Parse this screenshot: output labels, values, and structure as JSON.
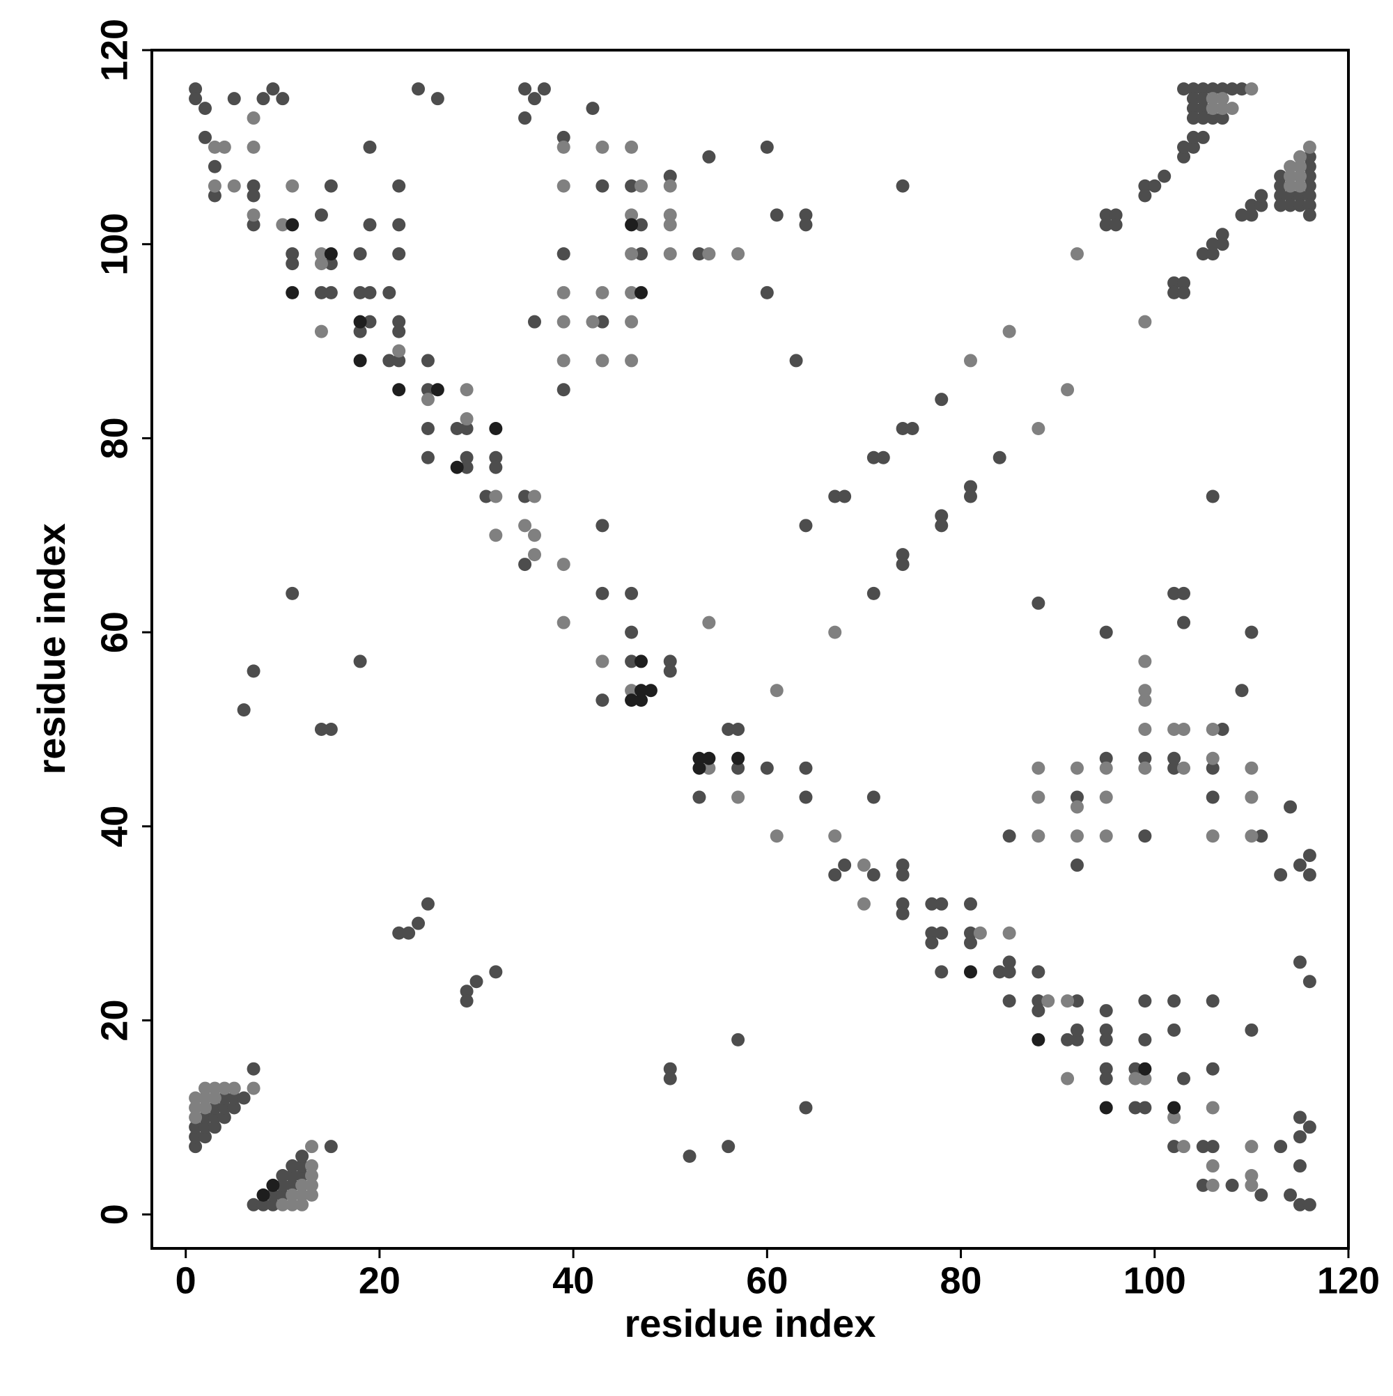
{
  "chart_data": {
    "type": "scatter",
    "x_label": "residue index",
    "y_label": "residue index",
    "xlim": [
      -3.5,
      120
    ],
    "ylim": [
      -3.5,
      120
    ],
    "xticks": [
      0,
      20,
      40,
      60,
      80,
      100,
      120
    ],
    "yticks": [
      0,
      20,
      40,
      60,
      80,
      100,
      120
    ],
    "grid": false,
    "series": [
      {
        "color": "#4d4d4d",
        "x": [
          1,
          1,
          2,
          2,
          3,
          3,
          5,
          8,
          9,
          10,
          7,
          7,
          7,
          11,
          11,
          14,
          15,
          15,
          14,
          15,
          18,
          19,
          19,
          18,
          19,
          21,
          19,
          18,
          21,
          22,
          22,
          22,
          22,
          22,
          22,
          24,
          26,
          25,
          25,
          25,
          25,
          28,
          29,
          29,
          29,
          32,
          32,
          31,
          35,
          35,
          35,
          36,
          37,
          35,
          36,
          39,
          39,
          39,
          42,
          43,
          43,
          43,
          43,
          43,
          46,
          47,
          47,
          46,
          46,
          46,
          50,
          50,
          50,
          53,
          54,
          56,
          57,
          57,
          53,
          60,
          61,
          60,
          64,
          64,
          63,
          60,
          64,
          64,
          64,
          67,
          68,
          74,
          67,
          68,
          71,
          71,
          71,
          71,
          72,
          74,
          75,
          74,
          74,
          74,
          74,
          74,
          74,
          77,
          78,
          77,
          78,
          77,
          78,
          78,
          78,
          78,
          81,
          81,
          81,
          81,
          81,
          84,
          84,
          85,
          85,
          85,
          85,
          88,
          88,
          88,
          88,
          91,
          92,
          92,
          92,
          92,
          92,
          95,
          96,
          95,
          96,
          95,
          95,
          95,
          95,
          95,
          95,
          95,
          98,
          98,
          99,
          99,
          99,
          99,
          99,
          100,
          101,
          99,
          99,
          102,
          103,
          102,
          103,
          102,
          103,
          103,
          102,
          102,
          102,
          102,
          103,
          102,
          103,
          103,
          104,
          104,
          105,
          105,
          106,
          106,
          107,
          107,
          106,
          107,
          106,
          106,
          106,
          106,
          105,
          106,
          105,
          108,
          110,
          111,
          109,
          110,
          111,
          109,
          110,
          110,
          111,
          111,
          113,
          113,
          114,
          114,
          115,
          116,
          116,
          115,
          116,
          115,
          116,
          115,
          115,
          115,
          116,
          52,
          56,
          57,
          64,
          50,
          50,
          29,
          29,
          30,
          32,
          24,
          22,
          23,
          25,
          18,
          14,
          15,
          11,
          6,
          7,
          103,
          104,
          105,
          106,
          107,
          108,
          109,
          104,
          105,
          104,
          105,
          104,
          105,
          106,
          107,
          113,
          113,
          113,
          113,
          114,
          114,
          115,
          115,
          116,
          116,
          116,
          116,
          116,
          116,
          116,
          1,
          1,
          1,
          2,
          2,
          2,
          3,
          3,
          3,
          4,
          4,
          4,
          5,
          5,
          6,
          7,
          7,
          8,
          9,
          9,
          10,
          10,
          10,
          11,
          11,
          11,
          12,
          12,
          12,
          15
        ],
        "values": [
          116,
          115,
          114,
          111,
          108,
          105,
          115,
          115,
          116,
          115,
          106,
          105,
          102,
          99,
          98,
          103,
          98,
          106,
          95,
          95,
          99,
          102,
          110,
          95,
          95,
          95,
          92,
          91,
          88,
          88,
          106,
          102,
          99,
          92,
          91,
          116,
          115,
          88,
          85,
          81,
          78,
          81,
          81,
          78,
          77,
          78,
          77,
          74,
          74,
          67,
          116,
          115,
          116,
          113,
          92,
          111,
          99,
          85,
          114,
          92,
          106,
          71,
          64,
          53,
          106,
          102,
          99,
          64,
          60,
          57,
          107,
          57,
          56,
          99,
          109,
          50,
          50,
          46,
          43,
          110,
          103,
          95,
          103,
          102,
          88,
          46,
          46,
          43,
          71,
          74,
          74,
          106,
          35,
          36,
          35,
          43,
          64,
          78,
          78,
          81,
          81,
          68,
          67,
          36,
          35,
          32,
          31,
          32,
          32,
          29,
          29,
          28,
          25,
          72,
          71,
          84,
          75,
          74,
          32,
          29,
          28,
          78,
          25,
          26,
          25,
          22,
          39,
          63,
          25,
          22,
          21,
          18,
          18,
          22,
          19,
          43,
          36,
          103,
          103,
          102,
          102,
          60,
          47,
          21,
          19,
          18,
          15,
          14,
          15,
          11,
          11,
          18,
          22,
          106,
          105,
          106,
          107,
          47,
          39,
          96,
          96,
          95,
          95,
          64,
          64,
          61,
          47,
          46,
          22,
          19,
          14,
          7,
          109,
          110,
          110,
          111,
          111,
          99,
          99,
          100,
          100,
          101,
          74,
          50,
          46,
          43,
          22,
          15,
          7,
          7,
          3,
          3,
          19,
          2,
          54,
          60,
          39,
          103,
          103,
          104,
          104,
          105,
          35,
          7,
          42,
          2,
          36,
          37,
          35,
          26,
          24,
          10,
          9,
          8,
          5,
          1,
          1,
          6,
          7,
          18,
          11,
          15,
          14,
          23,
          22,
          24,
          25,
          30,
          29,
          29,
          32,
          57,
          50,
          50,
          64,
          52,
          56,
          116,
          116,
          116,
          116,
          116,
          116,
          116,
          115,
          115,
          114,
          114,
          113,
          113,
          113,
          113,
          107,
          106,
          105,
          104,
          105,
          104,
          105,
          104,
          109,
          108,
          107,
          106,
          105,
          104,
          103,
          7,
          8,
          9,
          8,
          9,
          10,
          9,
          10,
          11,
          10,
          11,
          12,
          11,
          12,
          12,
          15,
          1,
          1,
          1,
          2,
          2,
          3,
          4,
          3,
          4,
          5,
          4,
          5,
          6,
          7
        ]
      },
      {
        "color": "#808080",
        "x": [
          3,
          4,
          3,
          5,
          7,
          7,
          7,
          10,
          11,
          14,
          14,
          14,
          22,
          25,
          29,
          29,
          32,
          32,
          36,
          35,
          36,
          36,
          39,
          39,
          39,
          39,
          39,
          42,
          43,
          43,
          43,
          39,
          39,
          43,
          46,
          47,
          46,
          46,
          46,
          46,
          46,
          50,
          50,
          50,
          50,
          46,
          54,
          57,
          54,
          57,
          54,
          61,
          61,
          67,
          67,
          70,
          70,
          81,
          82,
          85,
          85,
          88,
          88,
          88,
          88,
          89,
          91,
          91,
          92,
          92,
          92,
          91,
          92,
          95,
          95,
          95,
          98,
          99,
          99,
          99,
          99,
          99,
          99,
          99,
          102,
          103,
          103,
          102,
          103,
          106,
          106,
          106,
          106,
          106,
          106,
          110,
          110,
          110,
          110,
          110,
          110,
          110,
          106,
          107,
          106,
          107,
          108,
          114,
          114,
          114,
          115,
          115,
          115,
          115,
          116,
          1,
          1,
          1,
          2,
          2,
          2,
          3,
          3,
          4,
          5,
          7,
          10,
          11,
          11,
          12,
          12,
          12,
          13,
          13,
          13,
          13,
          13
        ],
        "values": [
          110,
          110,
          106,
          106,
          113,
          110,
          103,
          102,
          106,
          99,
          98,
          91,
          89,
          84,
          85,
          82,
          74,
          70,
          74,
          71,
          70,
          68,
          110,
          106,
          95,
          92,
          88,
          92,
          110,
          95,
          88,
          67,
          61,
          57,
          110,
          106,
          103,
          99,
          95,
          92,
          88,
          106,
          103,
          102,
          99,
          54,
          99,
          99,
          46,
          43,
          61,
          54,
          39,
          60,
          39,
          36,
          32,
          88,
          29,
          91,
          29,
          81,
          46,
          43,
          39,
          22,
          85,
          22,
          46,
          42,
          39,
          14,
          99,
          46,
          43,
          39,
          14,
          14,
          92,
          57,
          54,
          53,
          50,
          46,
          50,
          50,
          46,
          10,
          7,
          50,
          47,
          39,
          11,
          5,
          3,
          7,
          4,
          3,
          46,
          43,
          39,
          116,
          115,
          115,
          114,
          114,
          114,
          108,
          107,
          106,
          109,
          108,
          107,
          106,
          110,
          10,
          11,
          12,
          11,
          12,
          13,
          12,
          13,
          13,
          13,
          13,
          1,
          1,
          2,
          1,
          2,
          3,
          2,
          3,
          4,
          5,
          7
        ]
      },
      {
        "color": "#1e1e1e",
        "x": [
          11,
          11,
          15,
          18,
          18,
          22,
          26,
          28,
          32,
          46,
          47,
          46,
          47,
          48,
          47,
          47,
          53,
          53,
          54,
          57,
          95,
          99,
          102,
          81,
          88,
          8,
          9
        ],
        "values": [
          102,
          95,
          99,
          92,
          88,
          85,
          85,
          77,
          81,
          102,
          95,
          53,
          53,
          54,
          54,
          57,
          47,
          46,
          47,
          47,
          11,
          15,
          11,
          25,
          18,
          2,
          3
        ]
      }
    ]
  }
}
